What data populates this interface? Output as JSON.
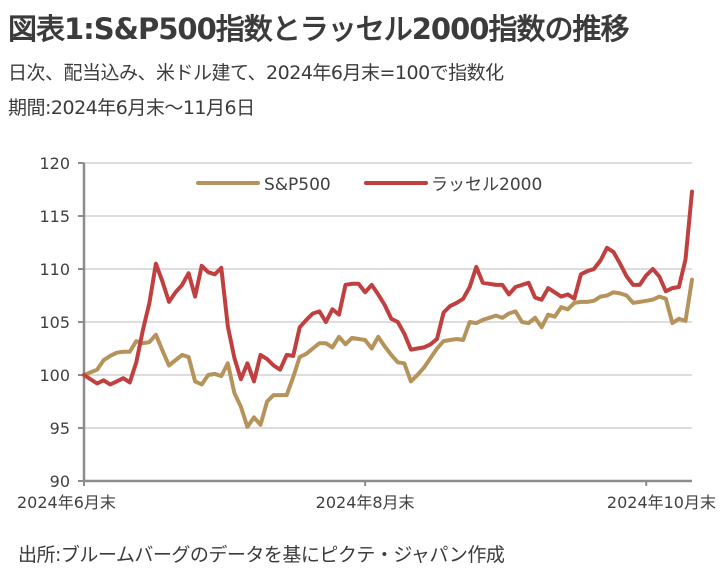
{
  "header": {
    "title": "図表1:S&P500指数とラッセル2000指数の推移",
    "subtitle1": "日次、配当込み、米ドル建て、2024年6月末=100で指数化",
    "subtitle2": "期間:2024年6月末〜11月6日"
  },
  "footer": {
    "source": "出所:ブルームバーグのデータを基にピクテ・ジャパン作成"
  },
  "colors": {
    "sp500": "#B5935A",
    "russell": "#C0403F",
    "grid": "#DDDDDD",
    "axis": "#8C8C8C"
  },
  "chart_data": {
    "type": "line",
    "title": "S&P500指数とラッセル2000指数の推移",
    "xlabel": "",
    "ylabel": "",
    "ylim": [
      90,
      120
    ],
    "yticks": [
      90,
      95,
      100,
      105,
      110,
      115,
      120
    ],
    "xticks": [
      {
        "label": "2024年6月末",
        "day": 0
      },
      {
        "label": "2024年8月末",
        "day": 43
      },
      {
        "label": "2024年10月末",
        "day": 86
      }
    ],
    "x_range_days": [
      0,
      93
    ],
    "grid": true,
    "legend_position": "top-center",
    "series": [
      {
        "name": "S&P500",
        "color_key": "sp500",
        "x": [
          0,
          2,
          3,
          4,
          5,
          6,
          7,
          8,
          9,
          10,
          11,
          12,
          13,
          14,
          15,
          16,
          17,
          18,
          19,
          20,
          21,
          22,
          23,
          24,
          25,
          26,
          27,
          28,
          29,
          30,
          31,
          32,
          33,
          34,
          35,
          36,
          37,
          38,
          39,
          40,
          41,
          42,
          43,
          44,
          45,
          46,
          47,
          48,
          49,
          50,
          51,
          52,
          53,
          54,
          55,
          56,
          57,
          58,
          59,
          60,
          61,
          62,
          63,
          64,
          65,
          66,
          67,
          68,
          69,
          70,
          71,
          72,
          73,
          74,
          75,
          76,
          77,
          78,
          79,
          80,
          81,
          82,
          83,
          84,
          85,
          86,
          87,
          88,
          89,
          90,
          91,
          92,
          93
        ],
        "values": [
          100,
          100.5,
          101.4,
          101.8,
          102.1,
          102.2,
          102.2,
          103.2,
          103.0,
          103.1,
          103.8,
          102.3,
          100.9,
          101.4,
          101.9,
          101.7,
          99.4,
          99.1,
          100.0,
          100.1,
          99.9,
          101.1,
          98.3,
          97.0,
          95.1,
          96.0,
          95.3,
          97.5,
          98.1,
          98.1,
          98.1,
          99.8,
          101.7,
          102.0,
          102.5,
          103.0,
          103.0,
          102.6,
          103.6,
          102.9,
          103.5,
          103.4,
          103.3,
          102.5,
          103.6,
          102.7,
          101.9,
          101.2,
          101.1,
          99.4,
          100.0,
          100.7,
          101.6,
          102.5,
          103.2,
          103.3,
          103.4,
          103.3,
          105.0,
          104.9,
          105.2,
          105.4,
          105.6,
          105.4,
          105.8,
          106.0,
          105.0,
          104.9,
          105.4,
          104.5,
          105.7,
          105.5,
          106.4,
          106.2,
          106.8,
          106.9,
          106.9,
          107.0,
          107.4,
          107.5,
          107.8,
          107.7,
          107.5,
          106.8,
          106.9,
          107.0,
          107.1,
          107.4,
          107.2,
          104.9,
          105.3,
          105.1,
          109.0
        ]
      },
      {
        "name": "ラッセル2000",
        "color_key": "russell",
        "x": [
          0,
          2,
          3,
          4,
          5,
          6,
          7,
          8,
          9,
          10,
          11,
          12,
          13,
          14,
          15,
          16,
          17,
          18,
          19,
          20,
          21,
          22,
          23,
          24,
          25,
          26,
          27,
          28,
          29,
          30,
          31,
          32,
          33,
          34,
          35,
          36,
          37,
          38,
          39,
          40,
          41,
          42,
          43,
          44,
          45,
          46,
          47,
          48,
          49,
          50,
          51,
          52,
          53,
          54,
          55,
          56,
          57,
          58,
          59,
          60,
          61,
          62,
          63,
          64,
          65,
          66,
          67,
          68,
          69,
          70,
          71,
          72,
          73,
          74,
          75,
          76,
          77,
          78,
          79,
          80,
          81,
          82,
          83,
          84,
          85,
          86,
          87,
          88,
          89,
          90,
          91,
          92,
          93
        ],
        "values": [
          100,
          99.2,
          99.5,
          99.1,
          99.4,
          99.7,
          99.3,
          101.2,
          104.2,
          106.8,
          110.5,
          108.8,
          106.9,
          107.8,
          108.5,
          109.6,
          107.4,
          110.3,
          109.7,
          109.5,
          110.1,
          104.6,
          101.6,
          99.6,
          101.1,
          99.4,
          101.9,
          101.5,
          100.9,
          100.5,
          101.9,
          101.8,
          104.5,
          105.2,
          105.8,
          106.0,
          105.0,
          106.2,
          105.7,
          108.5,
          108.6,
          108.6,
          107.8,
          108.5,
          107.6,
          106.6,
          105.3,
          105.0,
          103.9,
          102.4,
          102.5,
          102.6,
          102.9,
          103.4,
          105.9,
          106.5,
          106.8,
          107.2,
          108.3,
          110.2,
          108.7,
          108.6,
          108.5,
          108.5,
          107.6,
          108.3,
          108.5,
          108.7,
          107.3,
          107.1,
          108.2,
          107.8,
          107.4,
          107.6,
          107.2,
          109.5,
          109.8,
          110.0,
          110.8,
          112.0,
          111.6,
          110.5,
          109.3,
          108.5,
          108.5,
          109.4,
          110.0,
          109.3,
          107.9,
          108.2,
          108.3,
          110.9,
          117.3
        ]
      }
    ]
  }
}
